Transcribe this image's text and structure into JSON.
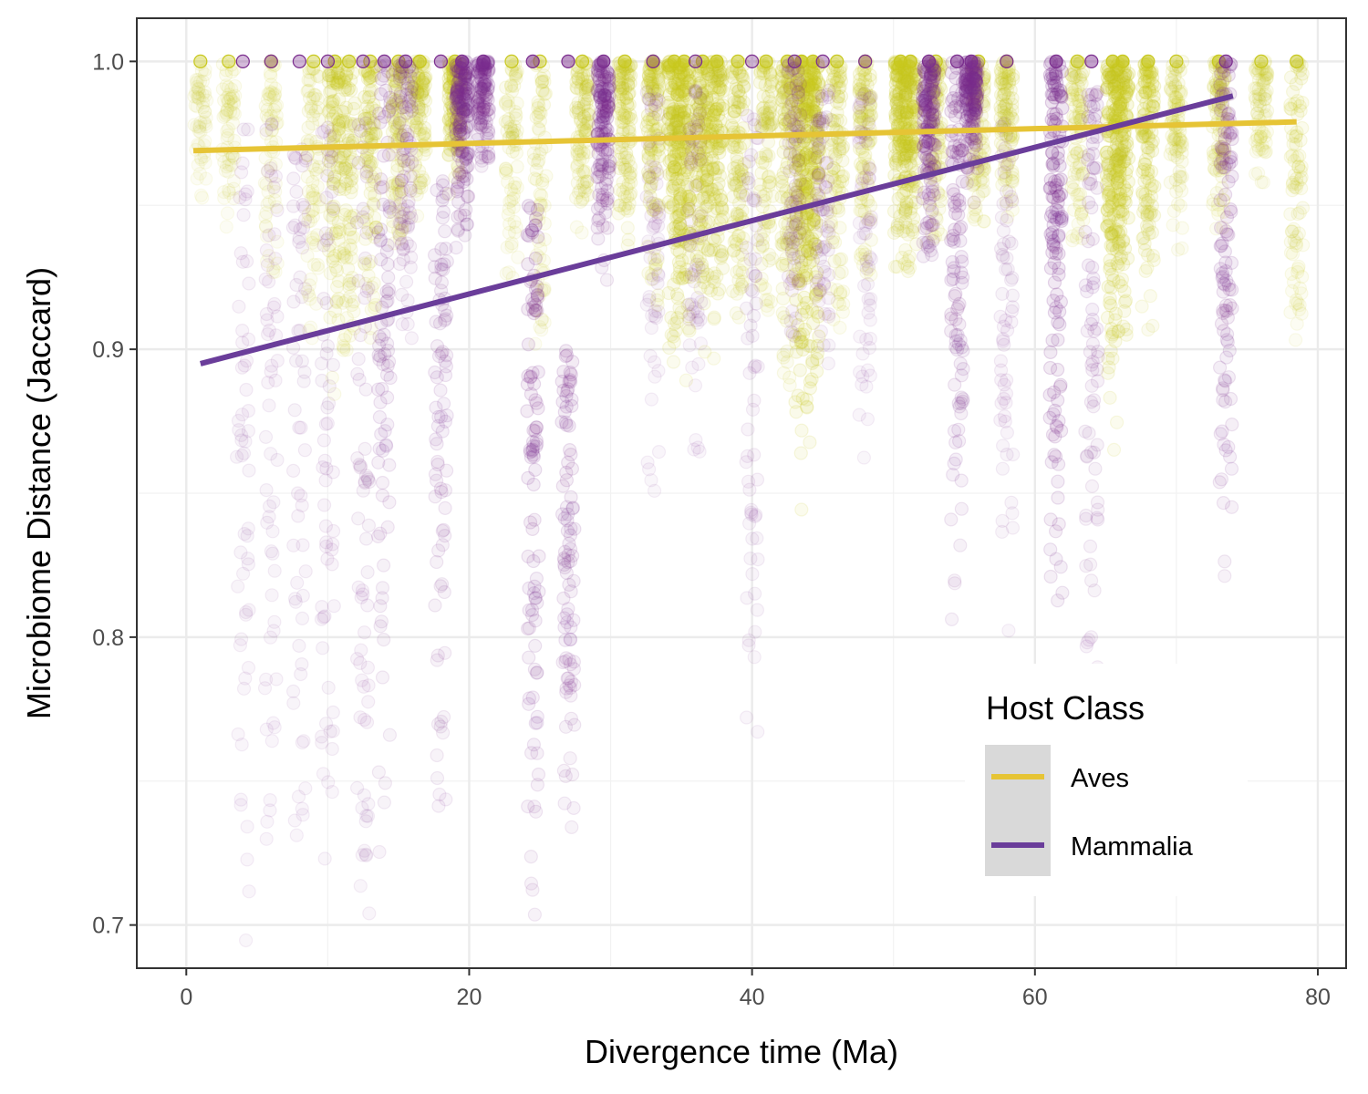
{
  "chart_data": {
    "type": "scatter",
    "xlabel": "Divergence time (Ma)",
    "ylabel": "Microbiome Distance (Jaccard)",
    "xlim": [
      -3.5,
      82
    ],
    "ylim": [
      0.685,
      1.015
    ],
    "xticks": [
      0,
      20,
      40,
      60,
      80
    ],
    "xtick_labels": [
      "0",
      "20",
      "40",
      "60",
      "80"
    ],
    "yticks": [
      0.7,
      0.8,
      0.9,
      1.0
    ],
    "ytick_labels": [
      "0.7",
      "0.8",
      "0.9",
      "1.0"
    ],
    "grid": true,
    "legend": {
      "title": "Host Class",
      "position": "bottom-right",
      "entries": [
        "Aves",
        "Mammalia"
      ]
    },
    "series": [
      {
        "name": "Aves",
        "color": "#E6C435",
        "point_color": "#C8C81E",
        "fit_line": {
          "x": [
            0.5,
            78.5
          ],
          "y": [
            0.969,
            0.979
          ]
        },
        "point_columns": [
          {
            "x": 1,
            "min": 0.95,
            "max": 1.0,
            "density": 0.15
          },
          {
            "x": 3,
            "min": 0.94,
            "max": 1.0,
            "density": 0.2
          },
          {
            "x": 6,
            "min": 0.92,
            "max": 1.0,
            "density": 0.2
          },
          {
            "x": 9,
            "min": 0.9,
            "max": 1.0,
            "density": 0.3
          },
          {
            "x": 10.5,
            "min": 0.88,
            "max": 1.0,
            "density": 0.55
          },
          {
            "x": 11.5,
            "min": 0.89,
            "max": 1.0,
            "density": 0.5
          },
          {
            "x": 13,
            "min": 0.9,
            "max": 1.0,
            "density": 0.5
          },
          {
            "x": 15,
            "min": 0.93,
            "max": 1.0,
            "density": 0.5
          },
          {
            "x": 16.5,
            "min": 0.94,
            "max": 1.0,
            "density": 0.5
          },
          {
            "x": 19,
            "min": 0.95,
            "max": 1.0,
            "density": 0.7
          },
          {
            "x": 23,
            "min": 0.92,
            "max": 1.0,
            "density": 0.3
          },
          {
            "x": 25,
            "min": 0.9,
            "max": 1.0,
            "density": 0.3
          },
          {
            "x": 28,
            "min": 0.94,
            "max": 1.0,
            "density": 0.5
          },
          {
            "x": 31,
            "min": 0.93,
            "max": 1.0,
            "density": 0.6
          },
          {
            "x": 33,
            "min": 0.9,
            "max": 1.0,
            "density": 0.6
          },
          {
            "x": 34.5,
            "min": 0.88,
            "max": 1.0,
            "density": 0.85
          },
          {
            "x": 35.2,
            "min": 0.88,
            "max": 1.0,
            "density": 0.85
          },
          {
            "x": 36.5,
            "min": 0.89,
            "max": 1.0,
            "density": 0.8
          },
          {
            "x": 37.5,
            "min": 0.89,
            "max": 1.0,
            "density": 0.75
          },
          {
            "x": 39,
            "min": 0.9,
            "max": 1.0,
            "density": 0.6
          },
          {
            "x": 41,
            "min": 0.91,
            "max": 1.0,
            "density": 0.5
          },
          {
            "x": 42.5,
            "min": 0.88,
            "max": 1.0,
            "density": 0.6
          },
          {
            "x": 43.5,
            "min": 0.83,
            "max": 1.0,
            "density": 1.0
          },
          {
            "x": 44.3,
            "min": 0.84,
            "max": 1.0,
            "density": 1.0
          },
          {
            "x": 46,
            "min": 0.9,
            "max": 1.0,
            "density": 0.5
          },
          {
            "x": 48,
            "min": 0.92,
            "max": 1.0,
            "density": 0.5
          },
          {
            "x": 50.5,
            "min": 0.92,
            "max": 1.0,
            "density": 0.85
          },
          {
            "x": 51.2,
            "min": 0.92,
            "max": 1.0,
            "density": 0.8
          },
          {
            "x": 53,
            "min": 0.93,
            "max": 1.0,
            "density": 0.5
          },
          {
            "x": 56,
            "min": 0.94,
            "max": 1.0,
            "density": 0.5
          },
          {
            "x": 58,
            "min": 0.94,
            "max": 1.0,
            "density": 0.5
          },
          {
            "x": 63,
            "min": 0.93,
            "max": 1.0,
            "density": 0.4
          },
          {
            "x": 65.5,
            "min": 0.86,
            "max": 1.0,
            "density": 0.9
          },
          {
            "x": 66.2,
            "min": 0.88,
            "max": 1.0,
            "density": 0.9
          },
          {
            "x": 68,
            "min": 0.9,
            "max": 1.0,
            "density": 0.7
          },
          {
            "x": 70,
            "min": 0.93,
            "max": 1.0,
            "density": 0.4
          },
          {
            "x": 73,
            "min": 0.94,
            "max": 1.0,
            "density": 0.5
          },
          {
            "x": 76,
            "min": 0.95,
            "max": 1.0,
            "density": 0.3
          },
          {
            "x": 78.5,
            "min": 0.9,
            "max": 1.0,
            "density": 0.4
          }
        ]
      },
      {
        "name": "Mammalia",
        "color": "#6A3D9A",
        "point_color": "#7B2D8E",
        "fit_line": {
          "x": [
            1,
            74
          ],
          "y": [
            0.895,
            0.988
          ]
        },
        "point_columns": [
          {
            "x": 4,
            "min": 0.69,
            "max": 0.98,
            "density": 0.15
          },
          {
            "x": 6,
            "min": 0.7,
            "max": 0.98,
            "density": 0.15
          },
          {
            "x": 8,
            "min": 0.72,
            "max": 0.97,
            "density": 0.2
          },
          {
            "x": 10,
            "min": 0.7,
            "max": 0.98,
            "density": 0.2
          },
          {
            "x": 12.5,
            "min": 0.7,
            "max": 0.98,
            "density": 0.25
          },
          {
            "x": 14,
            "min": 0.72,
            "max": 1.0,
            "density": 0.45
          },
          {
            "x": 15.5,
            "min": 0.9,
            "max": 1.0,
            "density": 0.4
          },
          {
            "x": 18,
            "min": 0.72,
            "max": 0.96,
            "density": 0.4
          },
          {
            "x": 19.5,
            "min": 0.93,
            "max": 1.0,
            "density": 0.9
          },
          {
            "x": 21,
            "min": 0.96,
            "max": 1.0,
            "density": 0.7
          },
          {
            "x": 24.5,
            "min": 0.69,
            "max": 0.95,
            "density": 0.6
          },
          {
            "x": 27,
            "min": 0.72,
            "max": 0.9,
            "density": 0.5
          },
          {
            "x": 29.5,
            "min": 0.92,
            "max": 1.0,
            "density": 0.85
          },
          {
            "x": 33,
            "min": 0.85,
            "max": 0.99,
            "density": 0.15
          },
          {
            "x": 36,
            "min": 0.85,
            "max": 0.99,
            "density": 0.15
          },
          {
            "x": 40,
            "min": 0.75,
            "max": 0.99,
            "density": 0.2
          },
          {
            "x": 43,
            "min": 0.9,
            "max": 1.0,
            "density": 0.3
          },
          {
            "x": 45,
            "min": 0.88,
            "max": 0.99,
            "density": 0.25
          },
          {
            "x": 48,
            "min": 0.86,
            "max": 0.99,
            "density": 0.15
          },
          {
            "x": 52.5,
            "min": 0.92,
            "max": 1.0,
            "density": 0.85
          },
          {
            "x": 54.5,
            "min": 0.8,
            "max": 1.0,
            "density": 0.6
          },
          {
            "x": 55.5,
            "min": 0.95,
            "max": 1.0,
            "density": 0.9
          },
          {
            "x": 58,
            "min": 0.8,
            "max": 0.98,
            "density": 0.2
          },
          {
            "x": 61.5,
            "min": 0.78,
            "max": 1.0,
            "density": 0.85
          },
          {
            "x": 64,
            "min": 0.78,
            "max": 0.99,
            "density": 0.4
          },
          {
            "x": 73.5,
            "min": 0.8,
            "max": 1.0,
            "density": 0.6
          }
        ]
      }
    ]
  }
}
